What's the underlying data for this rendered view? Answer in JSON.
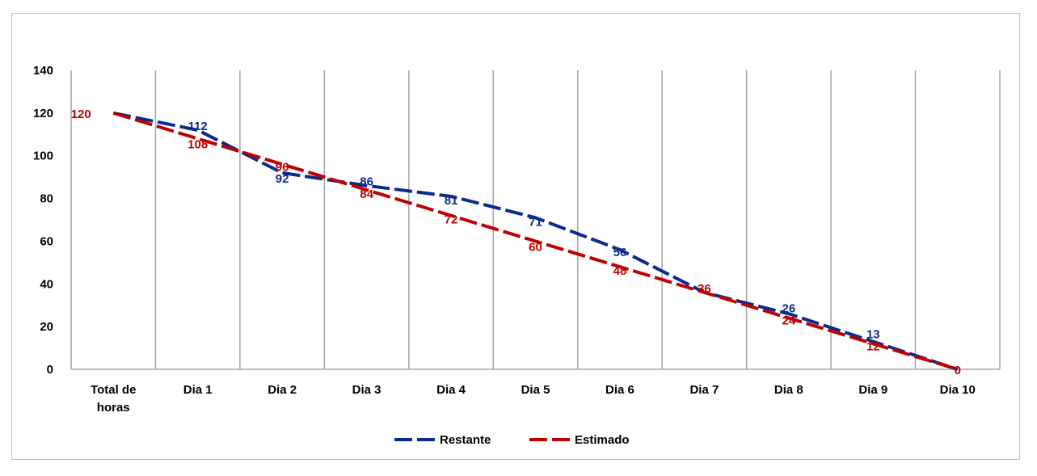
{
  "chart_data": {
    "type": "line",
    "title": "",
    "xlabel": "",
    "ylabel": "",
    "categories": [
      [
        "Total de",
        "horas"
      ],
      [
        "Dia 1"
      ],
      [
        "Dia 2"
      ],
      [
        "Dia 3"
      ],
      [
        "Dia 4"
      ],
      [
        "Dia 5"
      ],
      [
        "Dia 6"
      ],
      [
        "Dia 7"
      ],
      [
        "Dia 8"
      ],
      [
        "Dia 9"
      ],
      [
        "Dia 10"
      ]
    ],
    "ylim": [
      0,
      140
    ],
    "yticks": [
      0,
      20,
      40,
      60,
      80,
      100,
      120,
      140
    ],
    "grid": "vertical",
    "legend_position": "bottom",
    "series": [
      {
        "name": "Restante",
        "color": "#0a2a8c",
        "style": "dashed",
        "values": [
          120,
          112,
          92,
          86,
          81,
          71,
          56,
          36,
          26,
          13,
          0
        ],
        "labels": [
          "",
          "112",
          "92",
          "86",
          "81",
          "71",
          "56",
          "",
          "26",
          "13",
          ""
        ]
      },
      {
        "name": "Estimado",
        "color": "#c00000",
        "style": "dashed",
        "values": [
          120,
          108,
          96,
          84,
          72,
          60,
          48,
          36,
          24,
          12,
          0
        ],
        "labels": [
          "120",
          "108",
          "96",
          "84",
          "72",
          "60",
          "48",
          "36",
          "24",
          "12",
          "0"
        ]
      }
    ]
  }
}
